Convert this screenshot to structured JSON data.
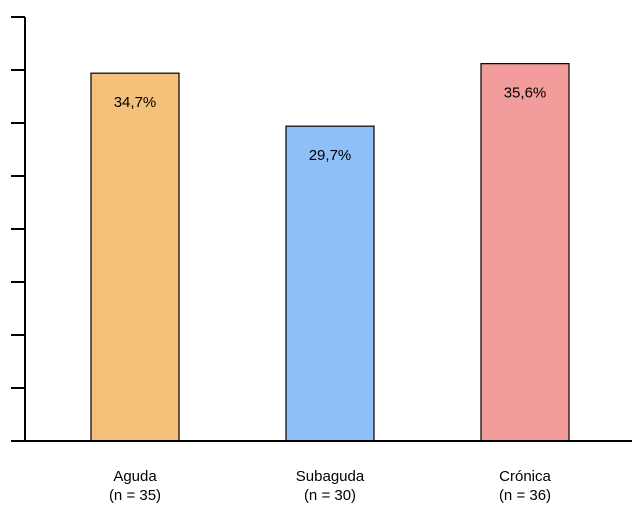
{
  "chart_data": {
    "type": "bar",
    "categories": [
      "Aguda",
      "Subaguda",
      "Crónica"
    ],
    "category_sublabels": [
      "(n = 35)",
      "(n = 30)",
      "(n = 36)"
    ],
    "values": [
      34.7,
      29.7,
      35.6
    ],
    "value_labels": [
      "34,7%",
      "29,7%",
      "35,6%"
    ],
    "colors": [
      "#F5C07A",
      "#8FBFF8",
      "#F29C9C"
    ],
    "ylim": [
      0,
      40
    ],
    "y_tick_count": 9,
    "y_tick_labels_shown": false,
    "grid": false,
    "legend": "none",
    "title": "",
    "xlabel": "",
    "ylabel": ""
  }
}
